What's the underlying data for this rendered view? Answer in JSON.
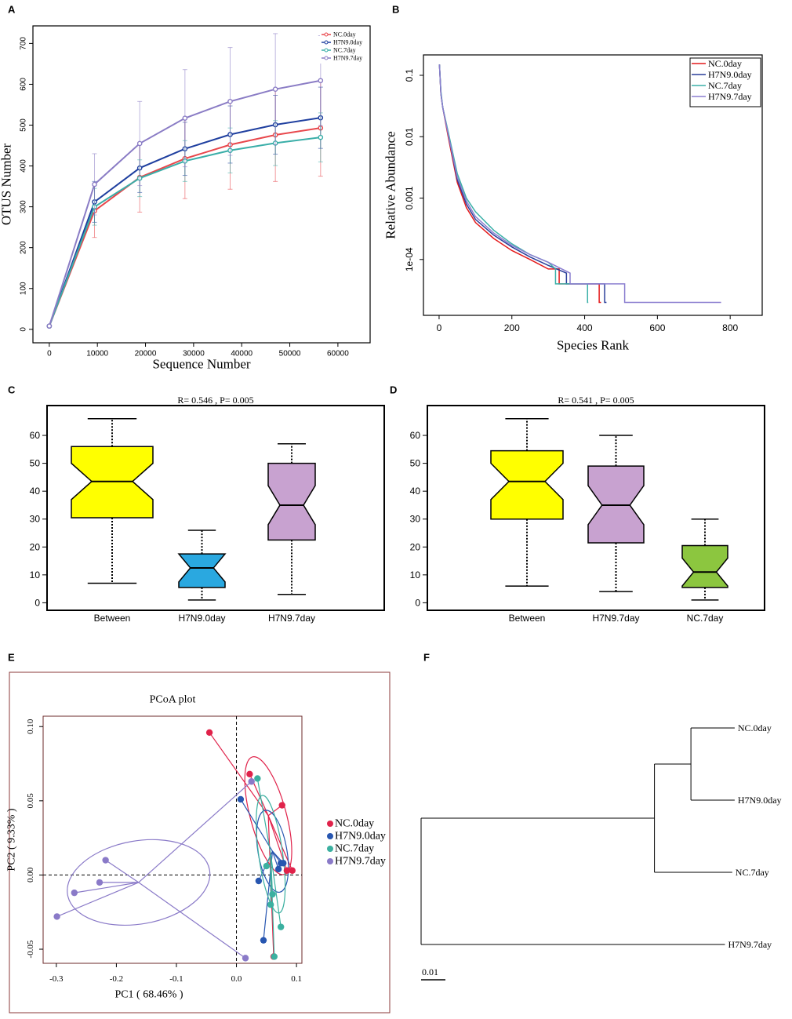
{
  "chart_data": [
    {
      "panel": "A",
      "type": "line",
      "markers": true,
      "x_label": "Sequence Number",
      "y_label": "OTUS Number",
      "x": [
        0,
        9400,
        18800,
        28200,
        37600,
        47000,
        56400
      ],
      "series": [
        {
          "name": "NC.0day",
          "color": "#e8474c",
          "values": [
            8,
            290,
            372,
            418,
            452,
            476,
            493
          ],
          "errors": [
            0,
            65,
            85,
            98,
            109,
            114,
            118
          ]
        },
        {
          "name": "H7N9.0day",
          "color": "#1f3f9f",
          "values": [
            8,
            312,
            395,
            442,
            477,
            501,
            518
          ],
          "errors": [
            0,
            50,
            60,
            65,
            70,
            72,
            75
          ]
        },
        {
          "name": "NC.7day",
          "color": "#3aaea8",
          "values": [
            8,
            300,
            370,
            412,
            438,
            456,
            470
          ],
          "errors": [
            0,
            45,
            45,
            50,
            55,
            55,
            60
          ]
        },
        {
          "name": "H7N9.7day",
          "color": "#8a7cc5",
          "values": [
            8,
            355,
            455,
            517,
            558,
            588,
            609
          ],
          "errors": [
            0,
            75,
            103,
            119,
            132,
            136,
            110
          ]
        }
      ],
      "xlim": [
        -3400,
        66700
      ],
      "xticks": [
        0,
        10000,
        20000,
        30000,
        40000,
        50000,
        60000
      ],
      "ylim": [
        -33,
        743
      ],
      "yticks": [
        0,
        100,
        200,
        300,
        400,
        500,
        600,
        700
      ],
      "legend": "upper right"
    },
    {
      "panel": "B",
      "type": "line",
      "log_y": true,
      "x_label": "Species Rank",
      "y_label": "Relative Abundance",
      "series": [
        {
          "name": "NC.0day",
          "color": "#e41a1c",
          "x": [
            1,
            5,
            10,
            25,
            50,
            75,
            100,
            150,
            200,
            250,
            300,
            330,
            330,
            440,
            440,
            445
          ],
          "values": [
            0.15,
            0.05,
            0.03,
            0.01,
            0.0018,
            0.0007,
            0.0004,
            0.00022,
            0.00014,
            0.0001,
            7e-05,
            7e-05,
            4e-05,
            4e-05,
            2e-05,
            2e-05
          ]
        },
        {
          "name": "H7N9.0day",
          "color": "#2a3f9a",
          "x": [
            1,
            5,
            10,
            25,
            50,
            75,
            100,
            150,
            200,
            250,
            300,
            350,
            350,
            455,
            455,
            460
          ],
          "values": [
            0.15,
            0.05,
            0.03,
            0.011,
            0.002,
            0.0008,
            0.00045,
            0.00025,
            0.00016,
            0.00011,
            8e-05,
            6e-05,
            4e-05,
            4e-05,
            2e-05,
            2e-05
          ]
        },
        {
          "name": "NC.7day",
          "color": "#3bb0a8",
          "x": [
            1,
            5,
            10,
            25,
            50,
            75,
            100,
            150,
            200,
            250,
            300,
            320,
            320,
            408,
            408,
            410
          ],
          "values": [
            0.15,
            0.055,
            0.03,
            0.012,
            0.0025,
            0.001,
            0.0006,
            0.0003,
            0.00018,
            0.00012,
            9e-05,
            7e-05,
            4e-05,
            4e-05,
            2e-05,
            2e-05
          ]
        },
        {
          "name": "H7N9.7day",
          "color": "#8b7fd0",
          "x": [
            1,
            5,
            10,
            25,
            50,
            75,
            100,
            150,
            200,
            250,
            300,
            360,
            360,
            510,
            510,
            775
          ],
          "values": [
            0.15,
            0.05,
            0.03,
            0.011,
            0.0022,
            0.0009,
            0.0005,
            0.00027,
            0.00017,
            0.00012,
            9e-05,
            6e-05,
            4e-05,
            4e-05,
            2e-05,
            2e-05
          ]
        }
      ],
      "xlim": [
        -43,
        888
      ],
      "xticks": [
        0,
        200,
        400,
        600,
        800
      ],
      "ylim": [
        1.23e-05,
        0.215
      ],
      "yticks": [
        0.1,
        0.01,
        0.001,
        {
          "value": 0.0001,
          "label": "1e-04"
        }
      ],
      "legend": "upper right"
    },
    {
      "panel": "C",
      "type": "box",
      "title": "R= 0.546 , P= 0.005",
      "categories": [
        "Between",
        "H7N9.0day",
        "H7N9.7day"
      ],
      "colors": [
        "#ffff00",
        "#2aa8e0",
        "#c8a2d0"
      ],
      "boxes": [
        {
          "min": 7,
          "q1": 30.5,
          "median": 43.5,
          "q3": 56,
          "max": 66,
          "notch": [
            37,
            50
          ]
        },
        {
          "min": 1,
          "q1": 5.5,
          "median": 12.5,
          "q3": 17.5,
          "max": 26,
          "notch": [
            7.5,
            17.5
          ]
        },
        {
          "min": 3,
          "q1": 22.5,
          "median": 35,
          "q3": 50,
          "max": 57,
          "notch": [
            28,
            42
          ]
        }
      ],
      "ylim": [
        -2.7,
        70.7
      ],
      "yticks": [
        0,
        10,
        20,
        30,
        40,
        50,
        60
      ]
    },
    {
      "panel": "D",
      "type": "box",
      "title": "R= 0.541 , P= 0.005",
      "categories": [
        "Between",
        "H7N9.7day",
        "NC.7day"
      ],
      "colors": [
        "#ffff00",
        "#c8a2d0",
        "#8cc63f"
      ],
      "boxes": [
        {
          "min": 6,
          "q1": 30,
          "median": 43.5,
          "q3": 54.5,
          "max": 66,
          "notch": [
            37,
            50
          ]
        },
        {
          "min": 4,
          "q1": 21.5,
          "median": 35,
          "q3": 49,
          "max": 60,
          "notch": [
            28,
            42
          ]
        },
        {
          "min": 1,
          "q1": 5.5,
          "median": 11,
          "q3": 20.5,
          "max": 30,
          "notch": [
            6,
            16
          ]
        }
      ],
      "ylim": [
        -2.7,
        70.7
      ],
      "yticks": [
        0,
        10,
        20,
        30,
        40,
        50,
        60
      ]
    },
    {
      "panel": "E",
      "type": "scatter",
      "title": "PCoA plot",
      "x_label": "PC1 ( 68.46% )",
      "y_label": "PC2 ( 9.33% )",
      "series": [
        {
          "name": "NC.0day",
          "color": "#e0224a",
          "x": [
            -0.045,
            0.022,
            0.076,
            0.084,
            0.093,
            0.062
          ],
          "values": [
            0.096,
            0.068,
            0.047,
            0.003,
            0.003,
            -0.055
          ],
          "centroid": [
            0.053,
            0.04
          ],
          "ellipse": {
            "rx": 0.03,
            "ry": 0.041,
            "angle": -15
          }
        },
        {
          "name": "H7N9.0day",
          "color": "#2756b0",
          "x": [
            0.007,
            0.074,
            0.037,
            0.045,
            0.07,
            0.078
          ],
          "values": [
            0.051,
            0.008,
            -0.004,
            -0.044,
            0.004,
            0.008
          ],
          "centroid": [
            0.06,
            0.016
          ],
          "ellipse": {
            "rx": 0.024,
            "ry": 0.028,
            "angle": -10
          }
        },
        {
          "name": "NC.7day",
          "color": "#3bb0a0",
          "x": [
            0.035,
            0.05,
            0.06,
            0.074,
            0.063,
            0.057
          ],
          "values": [
            0.065,
            0.006,
            -0.013,
            -0.035,
            -0.055,
            -0.02
          ],
          "centroid": [
            0.057,
            0.014
          ],
          "ellipse": {
            "rx": 0.02,
            "ry": 0.04,
            "angle": -8
          }
        },
        {
          "name": "H7N9.7day",
          "color": "#8a7ac8",
          "x": [
            -0.218,
            -0.228,
            -0.27,
            -0.299,
            0.015,
            0.025
          ],
          "values": [
            0.01,
            -0.005,
            -0.012,
            -0.028,
            -0.056,
            0.063
          ],
          "centroid": [
            -0.163,
            -0.005
          ],
          "ellipse": {
            "rx": 0.12,
            "ry": 0.028,
            "angle": -10
          }
        }
      ],
      "xlim": [
        -0.322,
        0.109
      ],
      "xticks": [
        -0.3,
        -0.2,
        -0.1,
        {
          "value": 0,
          "label": "0.0"
        },
        0.1
      ],
      "ylim": [
        -0.0595,
        0.107
      ],
      "yticks": [
        {
          "value": 0.1,
          "label": "0.10"
        },
        0.05,
        {
          "value": 0,
          "label": "0.00"
        },
        -0.05
      ],
      "legend": "right"
    },
    {
      "panel": "F",
      "type": "dendrogram",
      "scale_bar": 0.01,
      "tree": {
        "children": [
          {
            "length": 0.096,
            "children": [
              {
                "length": 0.015,
                "children": [
                  {
                    "name": "NC.0day",
                    "length": 0.018
                  },
                  {
                    "name": "H7N9.0day",
                    "length": 0.018
                  }
                ]
              },
              {
                "name": "NC.7day",
                "length": 0.032
              }
            ]
          },
          {
            "name": "H7N9.7day",
            "length": 0.125
          }
        ]
      }
    }
  ]
}
